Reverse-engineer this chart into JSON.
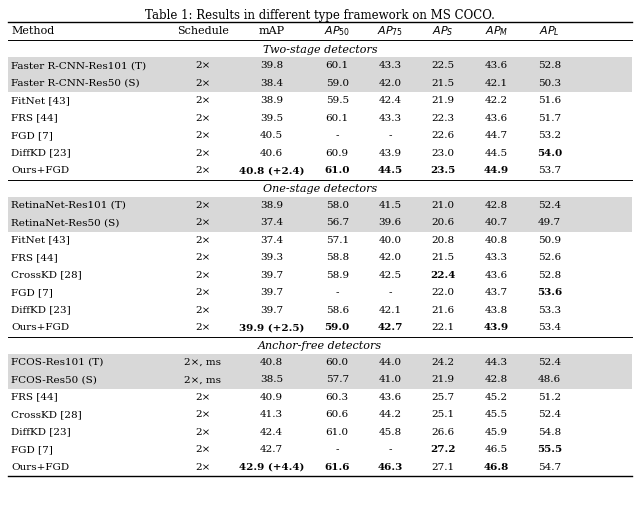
{
  "title": "Table 1: Results in different type framework on MS COCO.",
  "sections": [
    {
      "title": "Two-stage detectors",
      "rows": [
        {
          "method": "Faster R-CNN-Res101 (T)",
          "schedule": "2×",
          "mAP": "39.8",
          "ap50": "60.1",
          "ap75": "43.3",
          "aps": "22.5",
          "apm": "43.6",
          "apl": "52.8",
          "bold": []
        },
        {
          "method": "Faster R-CNN-Res50 (S)",
          "schedule": "2×",
          "mAP": "38.4",
          "ap50": "59.0",
          "ap75": "42.0",
          "aps": "21.5",
          "apm": "42.1",
          "apl": "50.3",
          "bold": []
        },
        {
          "method": "FitNet [43]",
          "schedule": "2×",
          "mAP": "38.9",
          "ap50": "59.5",
          "ap75": "42.4",
          "aps": "21.9",
          "apm": "42.2",
          "apl": "51.6",
          "bold": []
        },
        {
          "method": "FRS [44]",
          "schedule": "2×",
          "mAP": "39.5",
          "ap50": "60.1",
          "ap75": "43.3",
          "aps": "22.3",
          "apm": "43.6",
          "apl": "51.7",
          "bold": []
        },
        {
          "method": "FGD [7]",
          "schedule": "2×",
          "mAP": "40.5",
          "ap50": "-",
          "ap75": "-",
          "aps": "22.6",
          "apm": "44.7",
          "apl": "53.2",
          "bold": []
        },
        {
          "method": "DiffKD [23]",
          "schedule": "2×",
          "mAP": "40.6",
          "ap50": "60.9",
          "ap75": "43.9",
          "aps": "23.0",
          "apm": "44.5",
          "apl": "54.0",
          "bold": [
            "apl"
          ]
        },
        {
          "method": "Ours+FGD",
          "schedule": "2×",
          "mAP": "40.8 (+2.4)",
          "ap50": "61.0",
          "ap75": "44.5",
          "aps": "23.5",
          "apm": "44.9",
          "apl": "53.7",
          "bold": [
            "mAP",
            "ap50",
            "ap75",
            "aps",
            "apm"
          ]
        }
      ]
    },
    {
      "title": "One-stage detectors",
      "rows": [
        {
          "method": "RetinaNet-Res101 (T)",
          "schedule": "2×",
          "mAP": "38.9",
          "ap50": "58.0",
          "ap75": "41.5",
          "aps": "21.0",
          "apm": "42.8",
          "apl": "52.4",
          "bold": []
        },
        {
          "method": "RetinaNet-Res50 (S)",
          "schedule": "2×",
          "mAP": "37.4",
          "ap50": "56.7",
          "ap75": "39.6",
          "aps": "20.6",
          "apm": "40.7",
          "apl": "49.7",
          "bold": []
        },
        {
          "method": "FitNet [43]",
          "schedule": "2×",
          "mAP": "37.4",
          "ap50": "57.1",
          "ap75": "40.0",
          "aps": "20.8",
          "apm": "40.8",
          "apl": "50.9",
          "bold": []
        },
        {
          "method": "FRS [44]",
          "schedule": "2×",
          "mAP": "39.3",
          "ap50": "58.8",
          "ap75": "42.0",
          "aps": "21.5",
          "apm": "43.3",
          "apl": "52.6",
          "bold": []
        },
        {
          "method": "CrossKD [28]",
          "schedule": "2×",
          "mAP": "39.7",
          "ap50": "58.9",
          "ap75": "42.5",
          "aps": "22.4",
          "apm": "43.6",
          "apl": "52.8",
          "bold": [
            "aps"
          ]
        },
        {
          "method": "FGD [7]",
          "schedule": "2×",
          "mAP": "39.7",
          "ap50": "-",
          "ap75": "-",
          "aps": "22.0",
          "apm": "43.7",
          "apl": "53.6",
          "bold": [
            "apl"
          ]
        },
        {
          "method": "DiffKD [23]",
          "schedule": "2×",
          "mAP": "39.7",
          "ap50": "58.6",
          "ap75": "42.1",
          "aps": "21.6",
          "apm": "43.8",
          "apl": "53.3",
          "bold": []
        },
        {
          "method": "Ours+FGD",
          "schedule": "2×",
          "mAP": "39.9 (+2.5)",
          "ap50": "59.0",
          "ap75": "42.7",
          "aps": "22.1",
          "apm": "43.9",
          "apl": "53.4",
          "bold": [
            "mAP",
            "ap50",
            "ap75",
            "apm"
          ]
        }
      ]
    },
    {
      "title": "Anchor-free detectors",
      "rows": [
        {
          "method": "FCOS-Res101 (T)",
          "schedule": "2×, ms",
          "mAP": "40.8",
          "ap50": "60.0",
          "ap75": "44.0",
          "aps": "24.2",
          "apm": "44.3",
          "apl": "52.4",
          "bold": []
        },
        {
          "method": "FCOS-Res50 (S)",
          "schedule": "2×, ms",
          "mAP": "38.5",
          "ap50": "57.7",
          "ap75": "41.0",
          "aps": "21.9",
          "apm": "42.8",
          "apl": "48.6",
          "bold": []
        },
        {
          "method": "FRS [44]",
          "schedule": "2×",
          "mAP": "40.9",
          "ap50": "60.3",
          "ap75": "43.6",
          "aps": "25.7",
          "apm": "45.2",
          "apl": "51.2",
          "bold": []
        },
        {
          "method": "CrossKD [28]",
          "schedule": "2×",
          "mAP": "41.3",
          "ap50": "60.6",
          "ap75": "44.2",
          "aps": "25.1",
          "apm": "45.5",
          "apl": "52.4",
          "bold": []
        },
        {
          "method": "DiffKD [23]",
          "schedule": "2×",
          "mAP": "42.4",
          "ap50": "61.0",
          "ap75": "45.8",
          "aps": "26.6",
          "apm": "45.9",
          "apl": "54.8",
          "bold": []
        },
        {
          "method": "FGD [7]",
          "schedule": "2×",
          "mAP": "42.7",
          "ap50": "-",
          "ap75": "-",
          "aps": "27.2",
          "apm": "46.5",
          "apl": "55.5",
          "bold": [
            "aps",
            "apl"
          ]
        },
        {
          "method": "Ours+FGD",
          "schedule": "2×",
          "mAP": "42.9 (+4.4)",
          "ap50": "61.6",
          "ap75": "46.3",
          "aps": "27.1",
          "apm": "46.8",
          "apl": "54.7",
          "bold": [
            "mAP",
            "ap50",
            "ap75",
            "apm"
          ]
        }
      ]
    }
  ],
  "shade_color": "#d8d8d8",
  "background_color": "#ffffff",
  "font_size": 7.5,
  "header_font_size": 8.0,
  "title_font_size": 8.5,
  "section_font_size": 8.0
}
